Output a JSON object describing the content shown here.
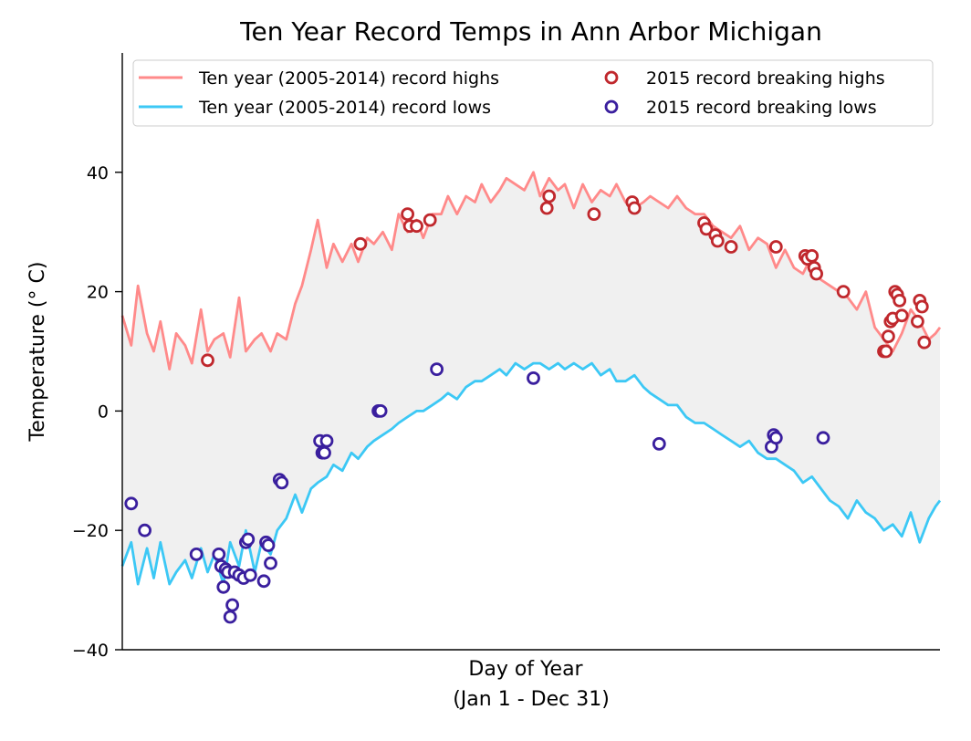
{
  "chart_data": {
    "type": "line",
    "title": "Ten Year Record Temps in Ann Arbor Michigan",
    "xlabel_line1": "Day of Year",
    "xlabel_line2": "(Jan 1 - Dec 31)",
    "ylabel": "Temperature (° C)",
    "ylim": [
      -40,
      60
    ],
    "yticks": [
      -40,
      -20,
      0,
      20,
      40
    ],
    "xlim": [
      1,
      365
    ],
    "xticks_visible": false,
    "grid": false,
    "fill_between_color": "#f0f0f0",
    "legend": {
      "placement": "top",
      "columns": 2,
      "entries": [
        {
          "label": "Ten year (2005-2014) record highs",
          "kind": "line",
          "color": "#ff8a8a"
        },
        {
          "label": "Ten year (2005-2014) record lows",
          "kind": "line",
          "color": "#3cc8f5"
        },
        {
          "label": "2015 record breaking highs",
          "kind": "marker",
          "color": "#c0282d"
        },
        {
          "label": "2015 record breaking lows",
          "kind": "marker",
          "color": "#3a1f9e"
        }
      ]
    },
    "series": [
      {
        "name": "Ten year (2005-2014) record highs",
        "color": "#ff8a8a",
        "x": [
          1,
          5,
          8,
          12,
          15,
          18,
          22,
          25,
          29,
          32,
          36,
          39,
          42,
          46,
          49,
          53,
          56,
          60,
          63,
          67,
          70,
          74,
          78,
          81,
          85,
          88,
          92,
          95,
          99,
          103,
          106,
          110,
          113,
          117,
          121,
          124,
          128,
          132,
          135,
          139,
          143,
          146,
          150,
          154,
          158,
          161,
          165,
          169,
          172,
          176,
          180,
          184,
          187,
          191,
          195,
          198,
          202,
          206,
          210,
          214,
          218,
          221,
          225,
          229,
          233,
          236,
          240,
          244,
          248,
          252,
          256,
          260,
          264,
          268,
          272,
          276,
          280,
          284,
          288,
          292,
          296,
          300,
          304,
          308,
          312,
          316,
          320,
          324,
          328,
          332,
          336,
          340,
          344,
          348,
          352,
          356,
          360,
          363,
          365
        ],
        "y": [
          16,
          11,
          21,
          13,
          10,
          15,
          7,
          13,
          11,
          8,
          17,
          10,
          12,
          13,
          9,
          19,
          10,
          12,
          13,
          10,
          13,
          12,
          18,
          21,
          27,
          32,
          24,
          28,
          25,
          28,
          25,
          29,
          28,
          30,
          27,
          33,
          30,
          32,
          29,
          33,
          33,
          36,
          33,
          36,
          35,
          38,
          35,
          37,
          39,
          38,
          37,
          40,
          36,
          39,
          37,
          38,
          34,
          38,
          35,
          37,
          36,
          38,
          35,
          34,
          35,
          36,
          35,
          34,
          36,
          34,
          33,
          33,
          31,
          30,
          29,
          31,
          27,
          29,
          28,
          24,
          27,
          24,
          23,
          26,
          22,
          21,
          20,
          19,
          17,
          20,
          14,
          12,
          10,
          13,
          17,
          15,
          12,
          13,
          14
        ]
      },
      {
        "name": "Ten year (2005-2014) record lows",
        "color": "#3cc8f5",
        "x": [
          1,
          5,
          8,
          12,
          15,
          18,
          22,
          25,
          29,
          32,
          36,
          39,
          42,
          46,
          49,
          53,
          56,
          60,
          63,
          67,
          70,
          74,
          78,
          81,
          85,
          88,
          92,
          95,
          99,
          103,
          106,
          110,
          113,
          117,
          121,
          124,
          128,
          132,
          135,
          139,
          143,
          146,
          150,
          154,
          158,
          161,
          165,
          169,
          172,
          176,
          180,
          184,
          187,
          191,
          195,
          198,
          202,
          206,
          210,
          214,
          218,
          221,
          225,
          229,
          233,
          236,
          240,
          244,
          248,
          252,
          256,
          260,
          264,
          268,
          272,
          276,
          280,
          284,
          288,
          292,
          296,
          300,
          304,
          308,
          312,
          316,
          320,
          324,
          328,
          332,
          336,
          340,
          344,
          348,
          352,
          356,
          360,
          363,
          365
        ],
        "y": [
          -26,
          -22,
          -29,
          -23,
          -28,
          -22,
          -29,
          -27,
          -25,
          -28,
          -23,
          -27,
          -24,
          -29,
          -22,
          -26,
          -20,
          -27,
          -22,
          -24,
          -20,
          -18,
          -14,
          -17,
          -13,
          -12,
          -11,
          -9,
          -10,
          -7,
          -8,
          -6,
          -5,
          -4,
          -3,
          -2,
          -1,
          0,
          0,
          1,
          2,
          3,
          2,
          4,
          5,
          5,
          6,
          7,
          6,
          8,
          7,
          8,
          8,
          7,
          8,
          7,
          8,
          7,
          8,
          6,
          7,
          5,
          5,
          6,
          4,
          3,
          2,
          1,
          1,
          -1,
          -2,
          -2,
          -3,
          -4,
          -5,
          -6,
          -5,
          -7,
          -8,
          -8,
          -9,
          -10,
          -12,
          -11,
          -13,
          -15,
          -16,
          -18,
          -15,
          -17,
          -18,
          -20,
          -19,
          -21,
          -17,
          -22,
          -18,
          -16,
          -15
        ]
      },
      {
        "name": "2015 record breaking highs",
        "color": "#c0282d",
        "x": [
          39,
          107,
          128,
          129,
          132,
          138,
          190,
          191,
          211,
          228,
          229,
          260,
          261,
          265,
          266,
          272,
          292,
          305,
          306,
          308,
          309,
          310,
          322,
          340,
          341,
          342,
          343,
          344,
          345,
          346,
          347,
          348,
          355,
          356,
          357,
          358
        ],
        "y": [
          8.5,
          28,
          33,
          31,
          31,
          32,
          34,
          36,
          33,
          35,
          34,
          31.5,
          30.5,
          29.5,
          28.5,
          27.5,
          27.5,
          26,
          25.5,
          26,
          24,
          23,
          20,
          10,
          10,
          12.5,
          15,
          15.5,
          20,
          19.5,
          18.5,
          16,
          15,
          18.5,
          17.5,
          11.5
        ]
      },
      {
        "name": "2015 record breaking lows",
        "color": "#3a1f9e",
        "x": [
          5,
          11,
          34,
          44,
          45,
          46,
          47,
          48,
          49,
          50,
          51,
          53,
          55,
          56,
          57,
          58,
          64,
          65,
          66,
          67,
          71,
          72,
          89,
          90,
          91,
          92,
          115,
          116,
          141,
          184,
          240,
          290,
          291,
          292,
          313
        ],
        "y": [
          -15.5,
          -20,
          -24,
          -24,
          -26,
          -29.5,
          -26.5,
          -27,
          -34.5,
          -32.5,
          -27,
          -27.5,
          -28,
          -22,
          -21.5,
          -27.5,
          -28.5,
          -22,
          -22.5,
          -25.5,
          -11.5,
          -12,
          -5,
          -7,
          -7,
          -5,
          0,
          0,
          7,
          5.5,
          -5.5,
          -6,
          -4,
          -4.5,
          -4.5
        ]
      }
    ]
  }
}
